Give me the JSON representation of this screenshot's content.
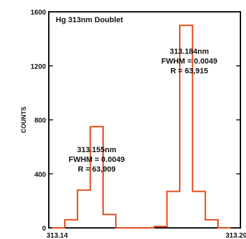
{
  "chart_data": {
    "type": "line",
    "title": "Hg 313nm Doublet",
    "xlabel": "",
    "ylabel": "COUNTS",
    "xlim": [
      313.14,
      313.2
    ],
    "ylim": [
      0,
      1600
    ],
    "x_tick_labels": [
      "313.14",
      "313.20"
    ],
    "x_ticks": [
      313.14,
      313.2
    ],
    "y_ticks": [
      0,
      400,
      800,
      1200,
      1600
    ],
    "y_tick_labels": [
      "0",
      "400",
      "800",
      "1200",
      "1600"
    ],
    "grid": false,
    "legend": "none",
    "line_color": "#e24a1a",
    "series": [
      {
        "bin_width": 0.004,
        "x": [
          313.143,
          313.147,
          313.151,
          313.155,
          313.159,
          313.163,
          313.167,
          313.171,
          313.175,
          313.179,
          313.183,
          313.187,
          313.191,
          313.195
        ],
        "values": [
          0,
          60,
          280,
          750,
          100,
          0,
          0,
          0,
          10,
          270,
          1500,
          270,
          60,
          0
        ]
      }
    ],
    "annotations": [
      {
        "lines": [
          "313.155nm",
          "FWHM = 0.0049",
          "R = 63,909"
        ],
        "x": 313.155,
        "y": 560
      },
      {
        "lines": [
          "313.184nm",
          "FWHM = 0.0049",
          "R = 63,915"
        ],
        "x": 313.184,
        "y": 1290
      }
    ]
  }
}
